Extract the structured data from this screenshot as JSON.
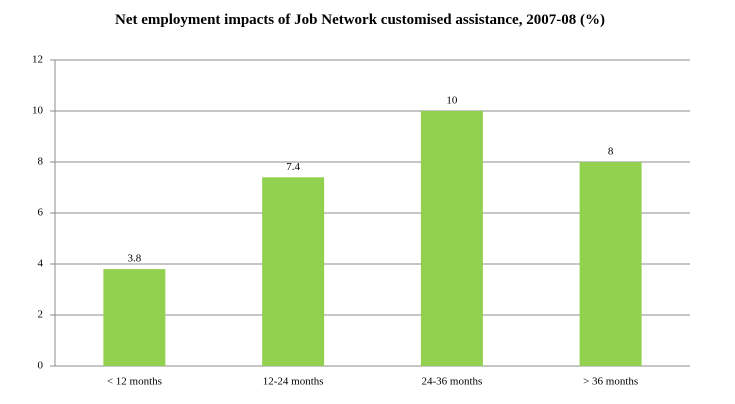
{
  "chart_data": {
    "type": "bar",
    "title": "Net employment impacts of Job Network customised assistance, 2007-08 (%)",
    "categories": [
      "< 12 months",
      "12-24 months",
      "24-36 months",
      "> 36 months"
    ],
    "values": [
      3.8,
      7.4,
      10,
      8
    ],
    "color": "#92d050",
    "ylim": [
      0,
      12
    ],
    "yticks": [
      0,
      2,
      4,
      6,
      8,
      10,
      12
    ],
    "grid": true,
    "data_labels": true
  }
}
